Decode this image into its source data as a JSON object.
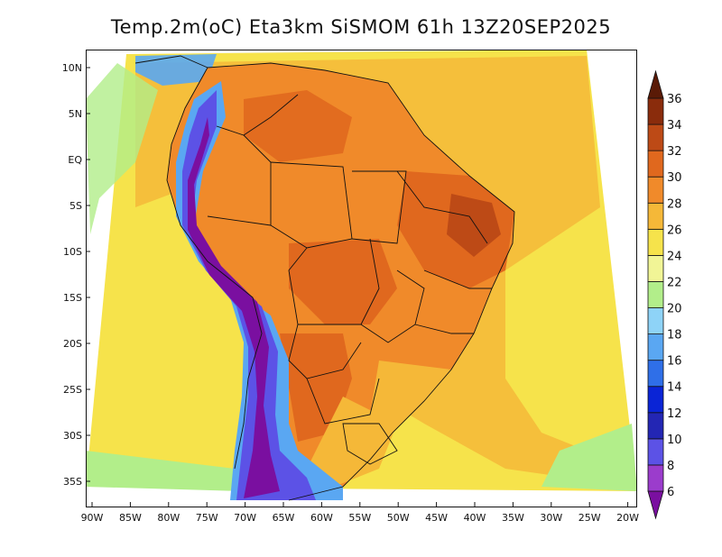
{
  "title": "Temp.2m(oC) Eta3km SiSMOM 61h 13Z20SEP2025",
  "lat_labels": [
    "10N",
    "5N",
    "EQ",
    "5S",
    "10S",
    "15S",
    "20S",
    "25S",
    "30S",
    "35S"
  ],
  "lon_labels": [
    "90W",
    "85W",
    "80W",
    "75W",
    "70W",
    "65W",
    "60W",
    "55W",
    "50W",
    "45W",
    "40W",
    "35W",
    "30W",
    "25W",
    "20W"
  ],
  "colorbar": {
    "labels": [
      "6",
      "8",
      "10",
      "12",
      "14",
      "16",
      "18",
      "20",
      "22",
      "24",
      "26",
      "28",
      "30",
      "32",
      "34",
      "36"
    ],
    "colors": [
      "#7a0fa0",
      "#9b3ccc",
      "#5c52e6",
      "#2326b4",
      "#0a24d6",
      "#2f6fe8",
      "#5aa7f2",
      "#8ed3f7",
      "#b2ee8a",
      "#f1f596",
      "#f6e34b",
      "#f5b838",
      "#f08a2a",
      "#e0681e",
      "#bd4a16",
      "#8a2c0c",
      "#5a1a06"
    ]
  },
  "colors": {
    "ocean_base": "#f6e34b",
    "ocean_warm": "#f5b838",
    "land_base": "#f08a2a",
    "land_hot": "#e0681e",
    "land_hotter": "#bd4a16",
    "andes_cold": "#5c52e6",
    "andes_colder": "#7a0fa0",
    "andes_cool": "#5aa7f2",
    "border": "#111111"
  }
}
